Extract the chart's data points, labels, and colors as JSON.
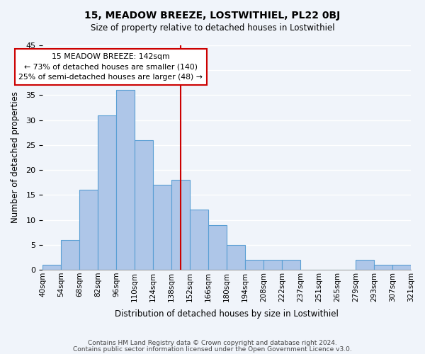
{
  "title": "15, MEADOW BREEZE, LOSTWITHIEL, PL22 0BJ",
  "subtitle": "Size of property relative to detached houses in Lostwithiel",
  "xlabel": "Distribution of detached houses by size in Lostwithiel",
  "ylabel": "Number of detached properties",
  "bin_edges": [
    "40sqm",
    "54sqm",
    "68sqm",
    "82sqm",
    "96sqm",
    "110sqm",
    "124sqm",
    "138sqm",
    "152sqm",
    "166sqm",
    "180sqm",
    "194sqm",
    "208sqm",
    "222sqm",
    "237sqm",
    "251sqm",
    "265sqm",
    "279sqm",
    "293sqm",
    "307sqm",
    "321sqm"
  ],
  "bar_values": [
    1,
    6,
    16,
    31,
    36,
    26,
    17,
    18,
    12,
    9,
    5,
    2,
    2,
    2,
    0,
    0,
    0,
    2,
    1,
    1
  ],
  "bar_color": "#aec6e8",
  "bar_edge_color": "#5a9fd4",
  "vline_x": 7.5,
  "vline_color": "#cc0000",
  "ylim": [
    0,
    45
  ],
  "yticks": [
    0,
    5,
    10,
    15,
    20,
    25,
    30,
    35,
    40,
    45
  ],
  "annotation_title": "15 MEADOW BREEZE: 142sqm",
  "annotation_line1": "← 73% of detached houses are smaller (140)",
  "annotation_line2": "25% of semi-detached houses are larger (48) →",
  "annotation_box_color": "#ffffff",
  "annotation_box_edge": "#cc0000",
  "footer_line1": "Contains HM Land Registry data © Crown copyright and database right 2024.",
  "footer_line2": "Contains public sector information licensed under the Open Government Licence v3.0.",
  "background_color": "#f0f4fa",
  "grid_color": "#ffffff"
}
